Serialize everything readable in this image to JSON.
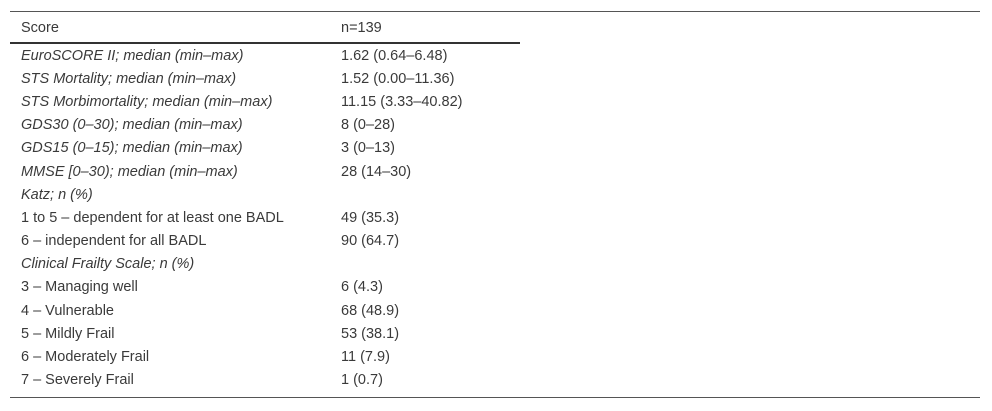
{
  "table": {
    "header": [
      "Score",
      "n=139"
    ],
    "rows": [
      [
        "EuroSCORE II; median (min–max)",
        "1.62 (0.64–6.48)"
      ],
      [
        "STS Mortality; median (min–max)",
        "1.52 (0.00–11.36)"
      ],
      [
        "STS Morbimortality; median (min–max)",
        "11.15 (3.33–40.82)"
      ],
      [
        "GDS30 (0–30); median (min–max)",
        "8 (0–28)"
      ],
      [
        "GDS15 (0–15); median (min–max)",
        "3 (0–13)"
      ],
      [
        "MMSE [0–30); median (min–max)",
        "28 (14–30)"
      ],
      [
        "Katz; n (%)"
      ],
      [
        "1 to 5 – dependent for at least one BADL",
        "49 (35.3)"
      ],
      [
        "6 – independent for all BADL",
        "90 (64.7)"
      ],
      [
        "Clinical Frailty Scale; n (%)"
      ],
      [
        "3 – Managing well",
        "6 (4.3)"
      ],
      [
        "4 – Vulnerable",
        "68 (48.9)"
      ],
      [
        "5 – Mildly Frail",
        "53 (38.1)"
      ],
      [
        "6 – Moderately Frail",
        "11 (7.9)"
      ],
      [
        "7 – Severely Frail",
        "1 (0.7)"
      ]
    ]
  }
}
